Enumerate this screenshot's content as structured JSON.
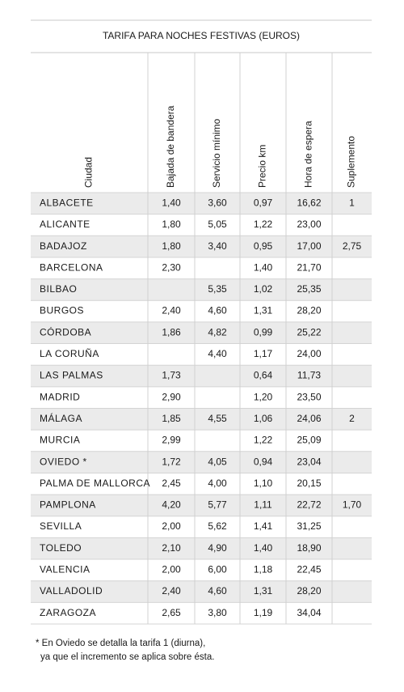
{
  "table": {
    "title": "TARIFA PARA NOCHES FESTIVAS (EUROS)",
    "headers": [
      "Ciudad",
      "Bajada de bandera",
      "Servicio mínimo",
      "Precio km",
      "Hora de espera",
      "Suplemento"
    ],
    "rows": [
      [
        "ALBACETE",
        "1,40",
        "3,60",
        "0,97",
        "16,62",
        "1"
      ],
      [
        "ALICANTE",
        "1,80",
        "5,05",
        "1,22",
        "23,00",
        null
      ],
      [
        "BADAJOZ",
        "1,80",
        "3,40",
        "0,95",
        "17,00",
        "2,75"
      ],
      [
        "BARCELONA",
        "2,30",
        null,
        "1,40",
        "21,70",
        null
      ],
      [
        "BILBAO",
        null,
        "5,35",
        "1,02",
        "25,35",
        null
      ],
      [
        "BURGOS",
        "2,40",
        "4,60",
        "1,31",
        "28,20",
        null
      ],
      [
        "CÓRDOBA",
        "1,86",
        "4,82",
        "0,99",
        "25,22",
        null
      ],
      [
        "LA CORUÑA",
        null,
        "4,40",
        "1,17",
        "24,00",
        null
      ],
      [
        "LAS PALMAS",
        "1,73",
        null,
        "0,64",
        "11,73",
        null
      ],
      [
        "MADRID",
        "2,90",
        null,
        "1,20",
        "23,50",
        null
      ],
      [
        "MÁLAGA",
        "1,85",
        "4,55",
        "1,06",
        "24,06",
        "2"
      ],
      [
        "MURCIA",
        "2,99",
        null,
        "1,22",
        "25,09",
        null
      ],
      [
        "OVIEDO *",
        "1,72",
        "4,05",
        "0,94",
        "23,04",
        null
      ],
      [
        "PALMA DE MALLORCA",
        "2,45",
        "4,00",
        "1,10",
        "20,15",
        null
      ],
      [
        "PAMPLONA",
        "4,20",
        "5,77",
        "1,11",
        "22,72",
        "1,70"
      ],
      [
        "SEVILLA",
        "2,00",
        "5,62",
        "1,41",
        "31,25",
        null
      ],
      [
        "TOLEDO",
        "2,10",
        "4,90",
        "1,40",
        "18,90",
        null
      ],
      [
        "VALENCIA",
        "2,00",
        "6,00",
        "1,18",
        "22,45",
        null
      ],
      [
        "VALLADOLID",
        "2,40",
        "4,60",
        "1,31",
        "28,20",
        null
      ],
      [
        "ZARAGOZA",
        "2,65",
        "3,80",
        "1,19",
        "34,04",
        null
      ]
    ],
    "footnote": [
      "* En Oviedo se detalla la tarifa 1 (diurna),",
      "ya que el incremento se aplica sobre ésta."
    ]
  }
}
